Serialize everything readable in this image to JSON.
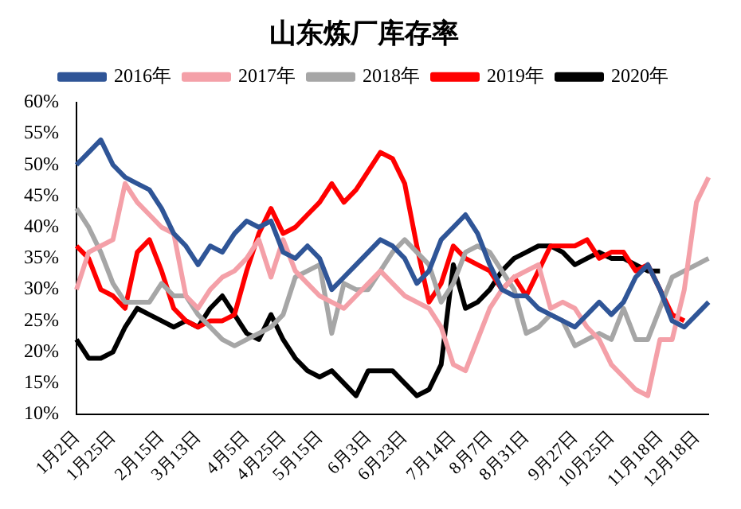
{
  "chart_data": {
    "type": "line",
    "title": "山东炼厂库存率",
    "categories": [
      "1月2日",
      null,
      null,
      "1月25日",
      null,
      null,
      null,
      "2月15日",
      null,
      null,
      "3月13日",
      null,
      null,
      null,
      "4月5日",
      null,
      null,
      "4月25日",
      null,
      null,
      "5月15日",
      null,
      null,
      null,
      "6月3日",
      null,
      null,
      "6月23日",
      null,
      null,
      null,
      "7月14日",
      null,
      null,
      "8月7日",
      null,
      null,
      "8月31日",
      null,
      null,
      null,
      "9月27日",
      null,
      null,
      "10月25日",
      null,
      null,
      null,
      "11月18日",
      null,
      null,
      "12月18日",
      null
    ],
    "series": [
      {
        "name": "2016年",
        "color": "#2f5597",
        "values": [
          50,
          52,
          54,
          50,
          48,
          47,
          46,
          43,
          39,
          37,
          34,
          37,
          36,
          39,
          41,
          40,
          41,
          36,
          35,
          37,
          35,
          30,
          32,
          34,
          36,
          38,
          37,
          35,
          31,
          33,
          38,
          40,
          42,
          39,
          34,
          30,
          29,
          29,
          27,
          26,
          25,
          24,
          26,
          28,
          26,
          28,
          32,
          34,
          30,
          25,
          24,
          26,
          28
        ]
      },
      {
        "name": "2017年",
        "color": "#f4a0a8",
        "values": [
          30,
          36,
          37,
          38,
          47,
          44,
          42,
          40,
          39,
          29,
          27,
          30,
          32,
          33,
          35,
          38,
          32,
          38,
          33,
          31,
          29,
          28,
          27,
          29,
          31,
          33,
          31,
          29,
          28,
          27,
          24,
          18,
          17,
          22,
          27,
          30,
          32,
          33,
          34,
          27,
          28,
          27,
          24,
          22,
          18,
          16,
          14,
          13,
          22,
          22,
          30,
          44,
          48
        ]
      },
      {
        "name": "2018年",
        "color": "#a6a6a6",
        "values": [
          43,
          40,
          36,
          31,
          28,
          28,
          28,
          31,
          29,
          29,
          26,
          24,
          22,
          21,
          22,
          23,
          24,
          26,
          32,
          33,
          34,
          23,
          31,
          30,
          30,
          33,
          36,
          38,
          36,
          34,
          28,
          31,
          36,
          37,
          36,
          33,
          30,
          23,
          24,
          26,
          25,
          21,
          22,
          23,
          22,
          27,
          22,
          22,
          27,
          32,
          33,
          34,
          35
        ]
      },
      {
        "name": "2019年",
        "color": "#ff0000",
        "values": [
          37,
          35,
          30,
          29,
          27,
          36,
          38,
          33,
          27,
          25,
          24,
          25,
          25,
          26,
          33,
          39,
          43,
          39,
          40,
          42,
          44,
          47,
          44,
          46,
          49,
          52,
          51,
          47,
          37,
          28,
          31,
          37,
          35,
          34,
          33,
          30,
          32,
          29,
          33,
          37,
          37,
          37,
          38,
          35,
          36,
          36,
          33,
          34,
          30,
          26,
          25,
          null,
          null
        ]
      },
      {
        "name": "2020年",
        "color": "#000000",
        "values": [
          22,
          19,
          19,
          20,
          24,
          27,
          26,
          25,
          24,
          25,
          24,
          27,
          29,
          26,
          23,
          22,
          26,
          22,
          19,
          17,
          16,
          17,
          15,
          13,
          17,
          17,
          17,
          15,
          13,
          14,
          18,
          34,
          27,
          28,
          30,
          33,
          35,
          36,
          37,
          37,
          36,
          34,
          35,
          36,
          35,
          35,
          34,
          33,
          33,
          null,
          null,
          null,
          null
        ]
      }
    ],
    "ylim": [
      10,
      60
    ],
    "yticks": [
      {
        "value": 10,
        "label": "10%"
      },
      {
        "value": 15,
        "label": "15%"
      },
      {
        "value": 20,
        "label": "20%"
      },
      {
        "value": 25,
        "label": "25%"
      },
      {
        "value": 30,
        "label": "30%"
      },
      {
        "value": 35,
        "label": "35%"
      },
      {
        "value": 40,
        "label": "40%"
      },
      {
        "value": 45,
        "label": "45%"
      },
      {
        "value": 50,
        "label": "50%"
      },
      {
        "value": 55,
        "label": "55%"
      },
      {
        "value": 60,
        "label": "60%"
      }
    ],
    "grid": false,
    "legend": "top",
    "marker": "none",
    "line_style": "solid"
  }
}
